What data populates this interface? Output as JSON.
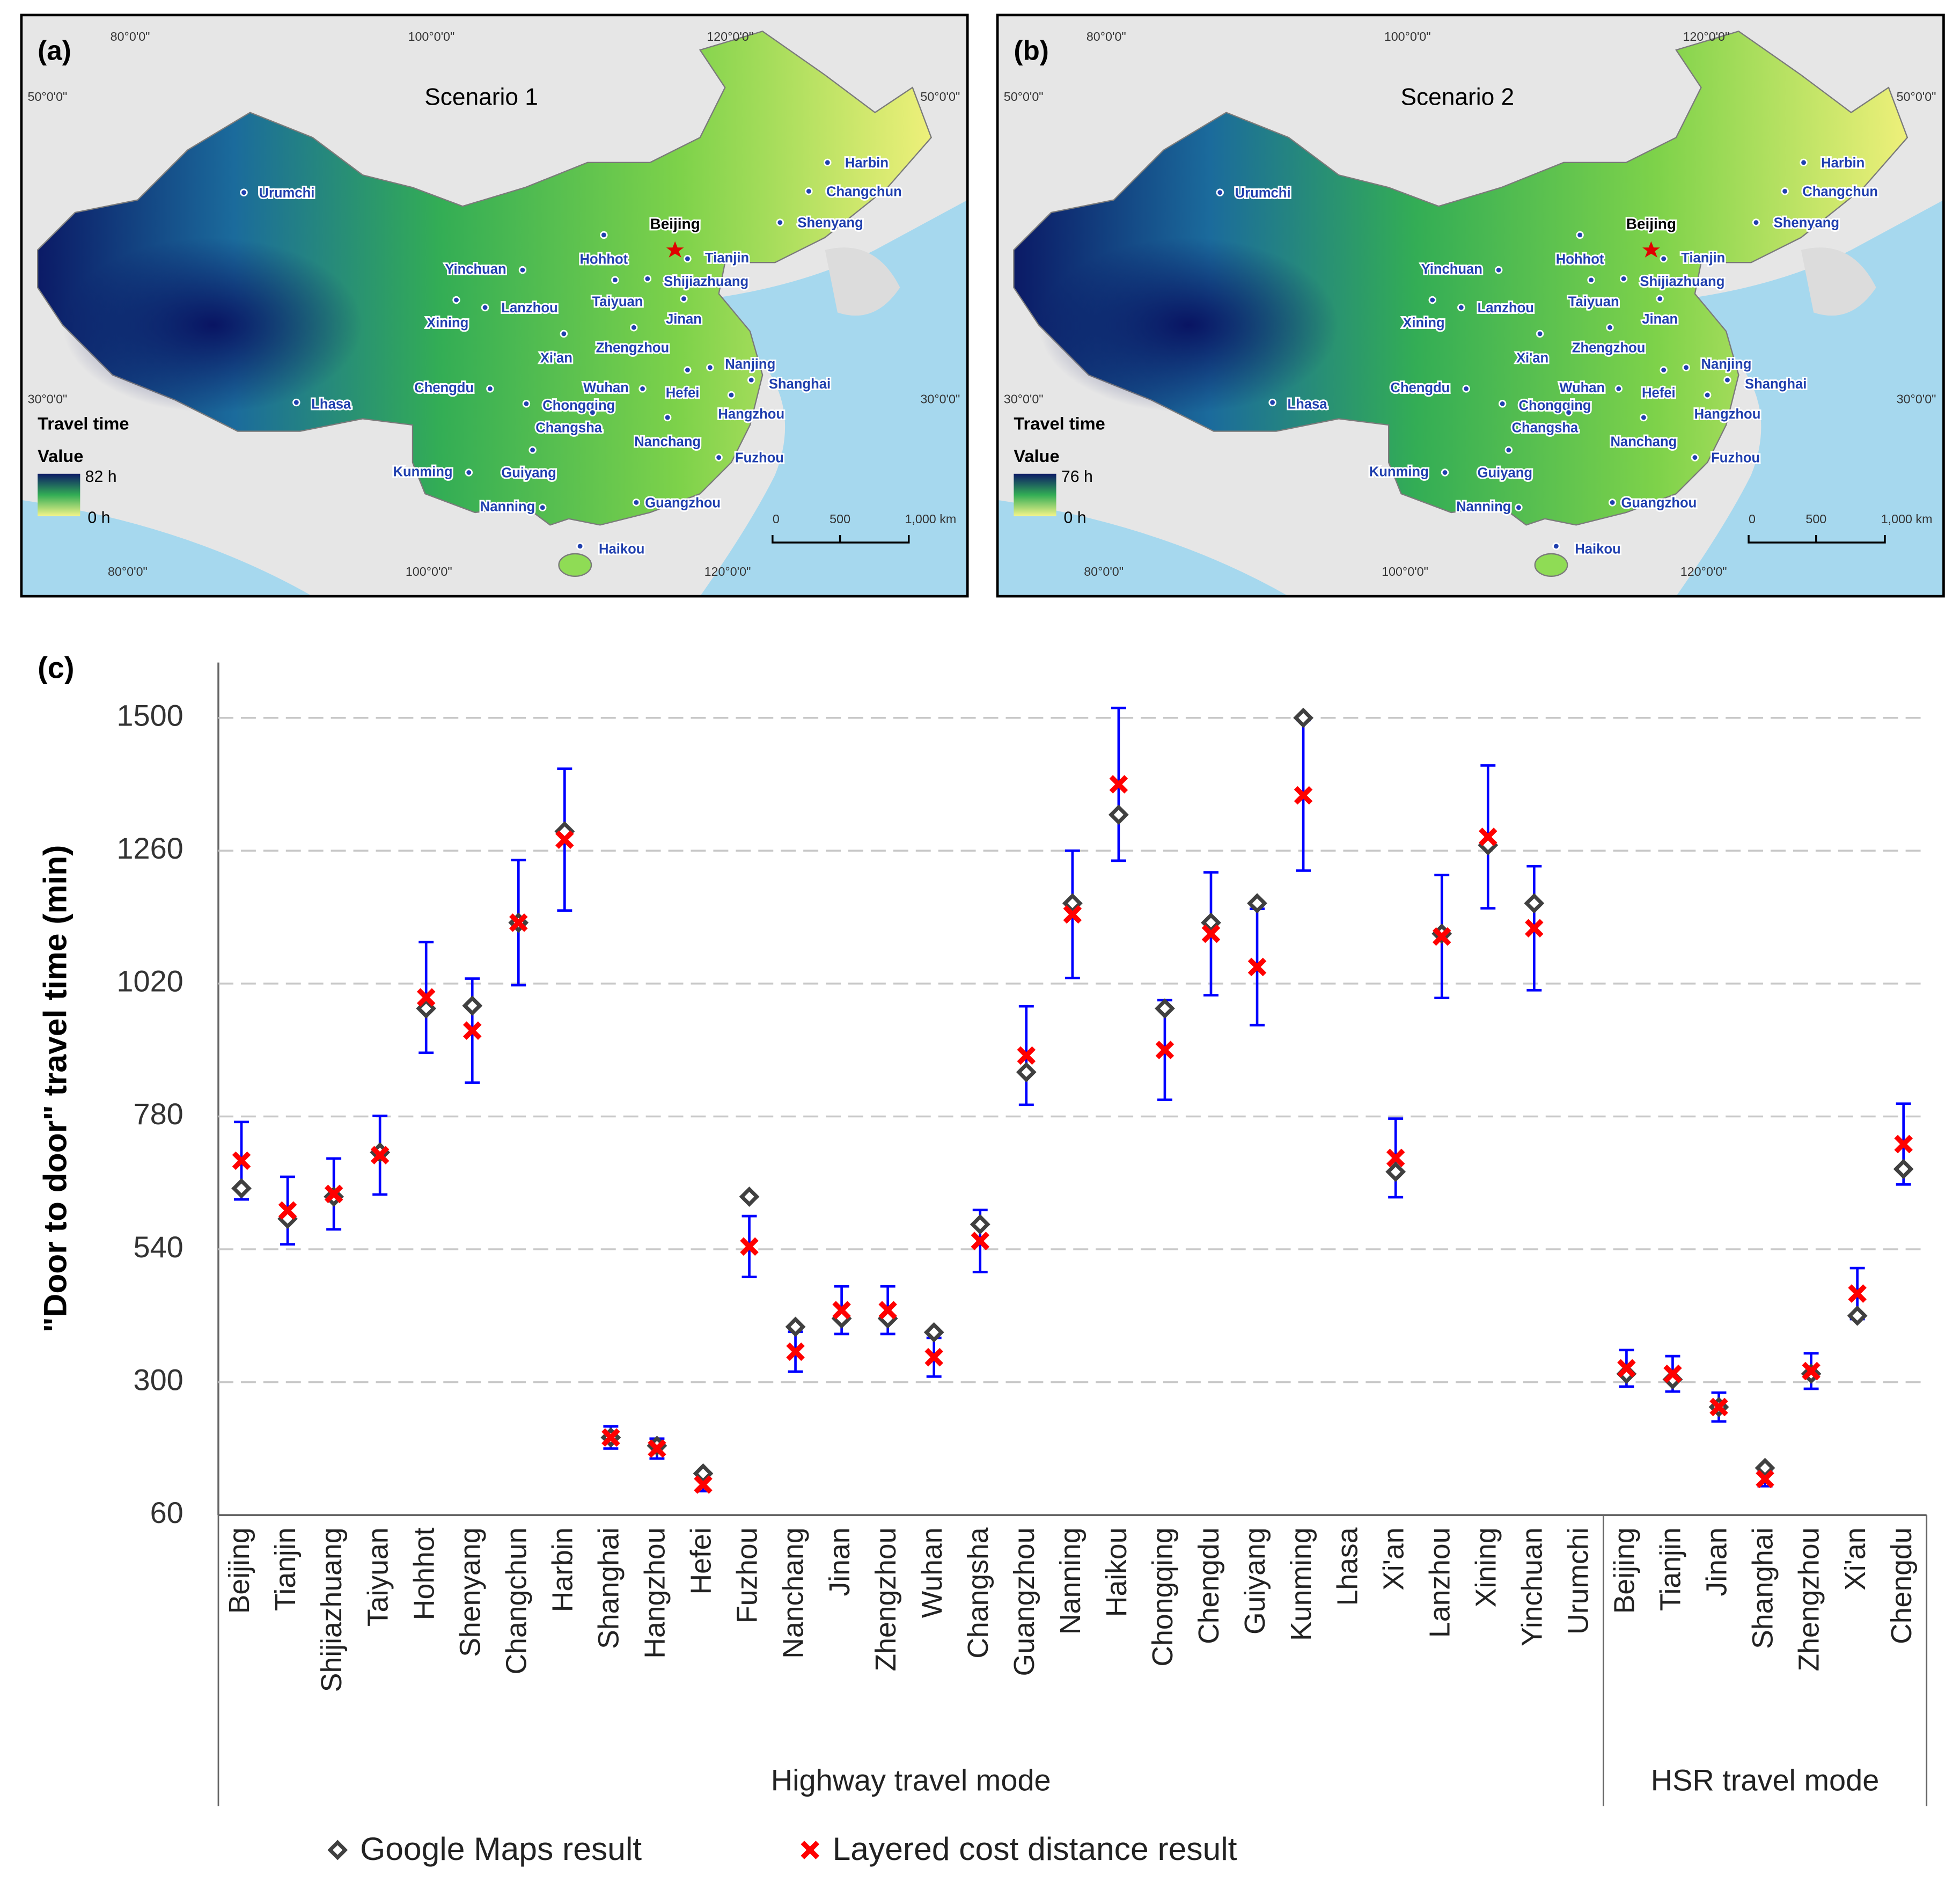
{
  "maps": [
    {
      "label": "(a)",
      "title": "Scenario 1",
      "legend_max": "82 h",
      "legend_min": "0 h"
    },
    {
      "label": "(b)",
      "title": "Scenario 2",
      "legend_max": "76 h",
      "legend_min": "0 h"
    }
  ],
  "map_common": {
    "legend_title": "Travel time",
    "legend_subtitle": "Value",
    "capital": "Beijing",
    "lon_labels": [
      "80°0'0\"",
      "100°0'0\"",
      "120°0'0\""
    ],
    "lat_labels": [
      "50°0'0\"",
      "30°0'0\""
    ],
    "scale_labels": [
      "0",
      "500",
      "1,000 km"
    ],
    "cities": [
      "Harbin",
      "Changchun",
      "Shenyang",
      "Urumchi",
      "Tianjin",
      "Hohhot",
      "Shijiazhuang",
      "Yinchuan",
      "Taiyuan",
      "Lanzhou",
      "Xining",
      "Jinan",
      "Zhengzhou",
      "Xi'an",
      "Nanjing",
      "Shanghai",
      "Hefei",
      "Wuhan",
      "Chengdu",
      "Chongqing",
      "Hangzhou",
      "Lhasa",
      "Changsha",
      "Nanchang",
      "Fuzhou",
      "Kunming",
      "Guiyang",
      "Nanning",
      "Guangzhou",
      "Haikou"
    ]
  },
  "chart_label": "(c)",
  "chart_data": {
    "type": "errorbar",
    "ylabel": "\"Door to door\" travel time (min)",
    "categories": [
      "Beijing",
      "Tianjin",
      "Shijiazhuang",
      "Taiyuan",
      "Hohhot",
      "Shenyang",
      "Changchun",
      "Harbin",
      "Shanghai",
      "Hangzhou",
      "Hefei",
      "Fuzhou",
      "Nanchang",
      "Jinan",
      "Zhengzhou",
      "Wuhan",
      "Changsha",
      "Guangzhou",
      "Nanning",
      "Haikou",
      "Chongqing",
      "Chengdu",
      "Guiyang",
      "Kunming",
      "Lhasa",
      "Xi'an",
      "Lanzhou",
      "Xining",
      "Yinchuan",
      "Urumchi",
      "Beijing",
      "Tianjin",
      "Jinan",
      "Shanghai",
      "Zhengzhou",
      "Xi'an",
      "Chengdu"
    ],
    "groups": [
      {
        "name": "Highway travel mode",
        "size": 30
      },
      {
        "name": "HSR travel mode",
        "size": 7
      }
    ],
    "series": [
      {
        "name": "Google Maps result",
        "color": "#404040",
        "marker": "diamond",
        "values": [
          650,
          595,
          635,
          715,
          975,
          980,
          1130,
          1295,
          200,
          185,
          135,
          635,
          400,
          415,
          415,
          390,
          585,
          860,
          1165,
          1325,
          975,
          1130,
          1165,
          1500,
          null,
          680,
          1110,
          1270,
          1165,
          null,
          315,
          305,
          255,
          145,
          315,
          420,
          685
        ]
      },
      {
        "name": "Layered cost distance result",
        "color": "#ff0000",
        "marker": "x",
        "error_color": "#0000ff",
        "values": [
          700,
          610,
          640,
          710,
          995,
          935,
          1130,
          1280,
          200,
          180,
          115,
          545,
          355,
          430,
          430,
          345,
          555,
          890,
          1145,
          1380,
          900,
          1110,
          1050,
          1360,
          null,
          705,
          1105,
          1285,
          1120,
          null,
          325,
          315,
          255,
          125,
          320,
          460,
          730
        ],
        "errors": [
          70,
          61,
          64,
          71,
          100,
          94,
          113,
          128,
          20,
          18,
          12,
          55,
          36,
          43,
          43,
          35,
          56,
          89,
          115,
          138,
          90,
          111,
          105,
          136,
          null,
          71,
          111,
          129,
          112,
          null,
          33,
          32,
          26,
          13,
          32,
          46,
          73
        ]
      }
    ],
    "ylim": [
      60,
      1600
    ],
    "yticks": [
      60,
      300,
      540,
      780,
      1020,
      1260,
      1500
    ],
    "grid": true,
    "legend": "bottom"
  }
}
